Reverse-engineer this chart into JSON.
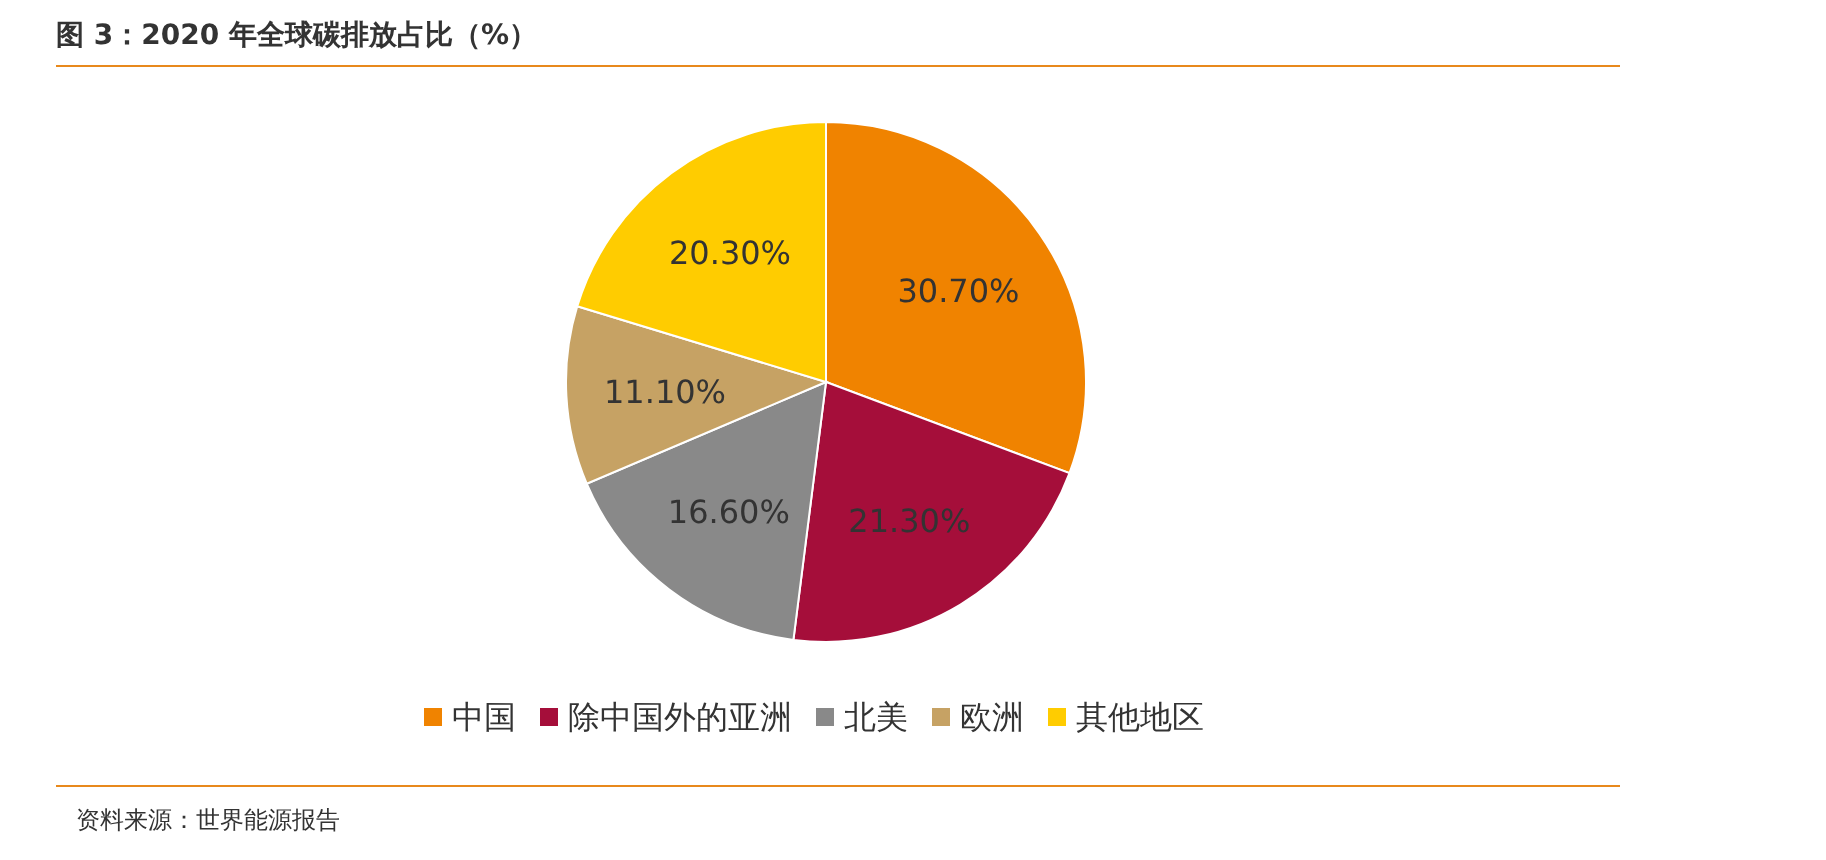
{
  "chart_data": {
    "type": "pie",
    "title": "图 3：2020 年全球碳排放占比（%）",
    "categories": [
      "中国",
      "除中国外的亚洲",
      "北美",
      "欧洲",
      "其他地区"
    ],
    "values": [
      30.7,
      21.3,
      16.6,
      11.1,
      20.3
    ],
    "value_labels": [
      "30.70%",
      "21.30%",
      "16.60%",
      "11.10%",
      "20.30%"
    ],
    "colors": [
      "#f08300",
      "#a50e3a",
      "#898989",
      "#c6a264",
      "#ffcc00"
    ],
    "legend": "bottom",
    "annotations": [
      "资料来源：世界能源报告"
    ]
  }
}
